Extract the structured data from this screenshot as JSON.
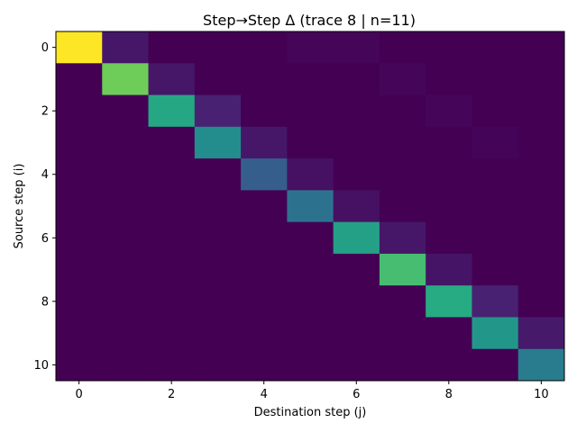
{
  "chart_data": {
    "type": "heatmap",
    "title": "Step→Step Δ (trace 8 | n=11)",
    "xlabel": "Destination step (j)",
    "ylabel": "Source step (i)",
    "x_ticks": [
      "0",
      "2",
      "4",
      "6",
      "8",
      "10"
    ],
    "y_ticks": [
      "0",
      "2",
      "4",
      "6",
      "8",
      "10"
    ],
    "rows": 11,
    "cols": 11,
    "colormap": "viridis",
    "value_range": [
      0,
      1
    ],
    "values": [
      [
        1.0,
        0.08,
        0.0,
        0.0,
        0.0,
        0.02,
        0.02,
        0.0,
        0.0,
        0.0,
        0.0
      ],
      [
        0.0,
        0.78,
        0.08,
        0.0,
        0.0,
        0.0,
        0.0,
        0.02,
        0.0,
        0.0,
        0.0
      ],
      [
        0.0,
        0.0,
        0.6,
        0.12,
        0.0,
        0.0,
        0.0,
        0.0,
        0.02,
        0.0,
        0.0
      ],
      [
        0.0,
        0.0,
        0.0,
        0.48,
        0.08,
        0.0,
        0.0,
        0.0,
        0.0,
        0.01,
        0.0
      ],
      [
        0.0,
        0.0,
        0.0,
        0.0,
        0.3,
        0.06,
        0.0,
        0.0,
        0.0,
        0.0,
        0.0
      ],
      [
        0.0,
        0.0,
        0.0,
        0.0,
        0.0,
        0.38,
        0.06,
        0.0,
        0.0,
        0.0,
        0.0
      ],
      [
        0.0,
        0.0,
        0.0,
        0.0,
        0.0,
        0.0,
        0.57,
        0.08,
        0.0,
        0.0,
        0.0
      ],
      [
        0.0,
        0.0,
        0.0,
        0.0,
        0.0,
        0.0,
        0.0,
        0.7,
        0.07,
        0.0,
        0.0
      ],
      [
        0.0,
        0.0,
        0.0,
        0.0,
        0.0,
        0.0,
        0.0,
        0.0,
        0.62,
        0.12,
        0.0
      ],
      [
        0.0,
        0.0,
        0.0,
        0.0,
        0.0,
        0.0,
        0.0,
        0.0,
        0.0,
        0.53,
        0.09
      ],
      [
        0.0,
        0.0,
        0.0,
        0.0,
        0.0,
        0.0,
        0.0,
        0.0,
        0.0,
        0.0,
        0.42
      ]
    ]
  }
}
